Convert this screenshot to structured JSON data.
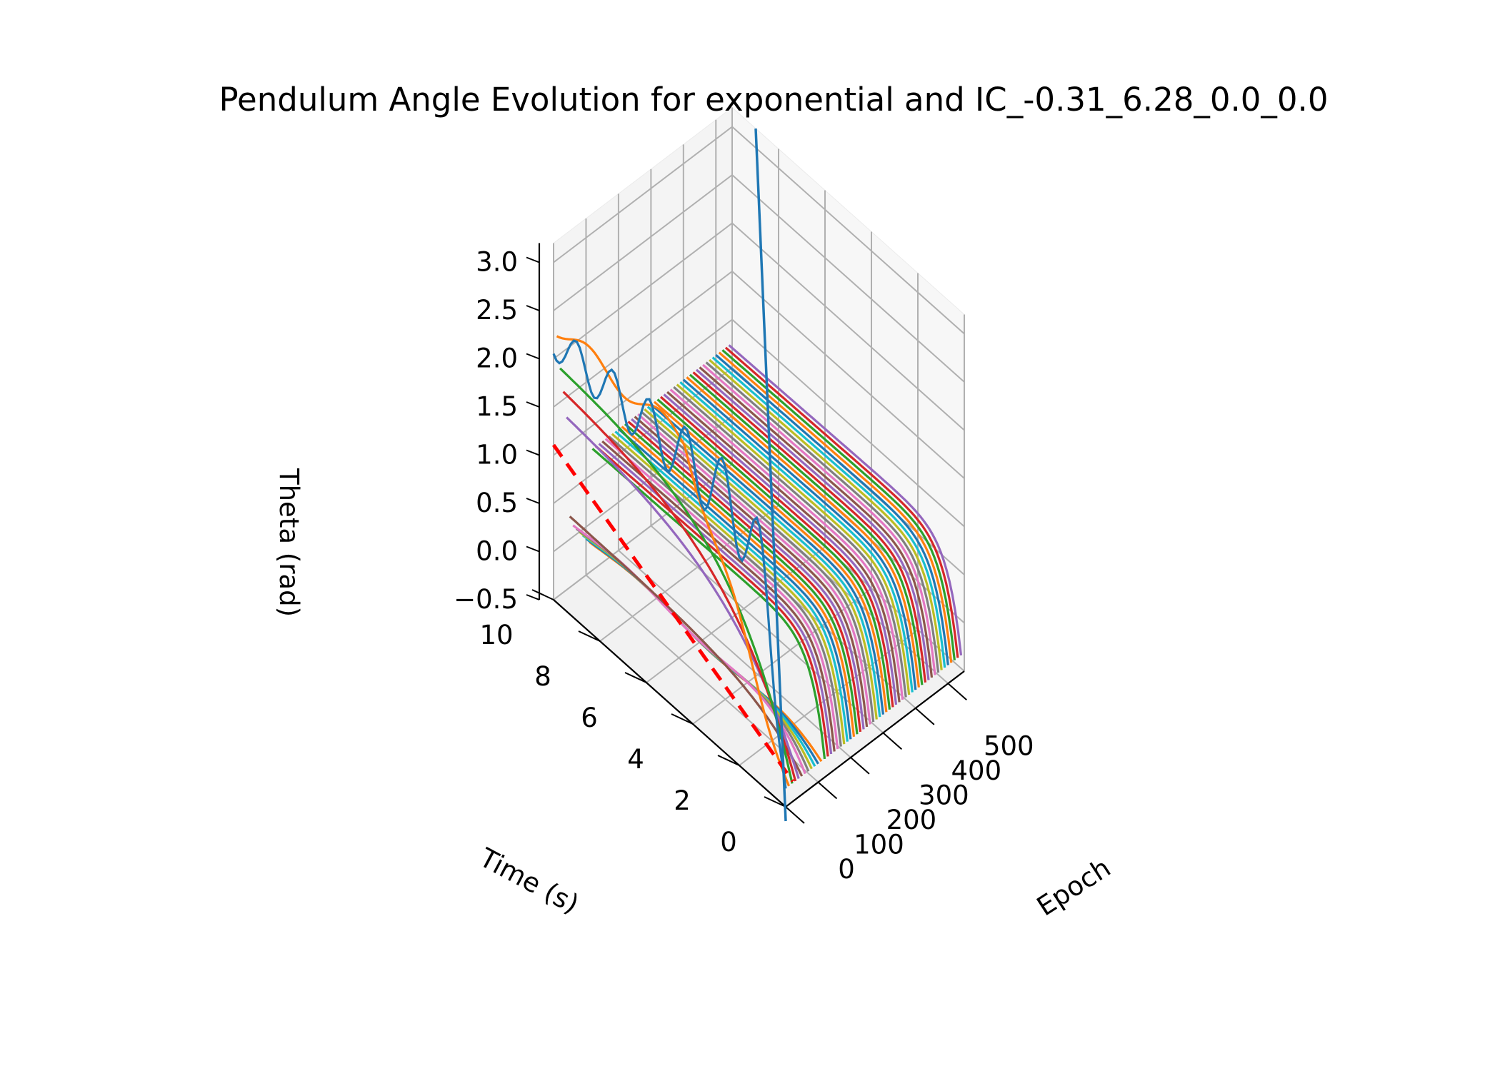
{
  "chart_data": {
    "type": "line",
    "projection": "3d",
    "title": "Pendulum Angle Evolution for exponential and IC_-0.31_6.28_0.0_0.0",
    "xlabel": "Epoch",
    "ylabel": "Time (s)",
    "zlabel": "Theta (rad)",
    "xlim": [
      0,
      550
    ],
    "ylim": [
      0,
      10
    ],
    "zlim": [
      -0.5,
      3.2
    ],
    "x_ticks": [
      "0",
      "100",
      "200",
      "300",
      "400",
      "500"
    ],
    "y_ticks": [
      "0",
      "2",
      "4",
      "6",
      "8",
      "10"
    ],
    "z_ticks": [
      "−0.5",
      "0.0",
      "0.5",
      "1.0",
      "1.5",
      "2.0",
      "2.5",
      "3.0"
    ],
    "grid": true,
    "series_count": 55,
    "epoch_step": 10,
    "series_colors": [
      "#1f77b4",
      "#ff7f0e",
      "#2ca02c",
      "#d62728",
      "#9467bd",
      "#8c564b",
      "#e377c2",
      "#7f7f7f",
      "#bcbd22",
      "#17becf"
    ],
    "true_solution": {
      "color": "#ff0000",
      "style": "dashed",
      "epoch": 0,
      "theta_start": 1.18,
      "theta_end": -0.31
    },
    "initial_condition": {
      "theta0": -0.31,
      "omega0": 6.28
    }
  }
}
